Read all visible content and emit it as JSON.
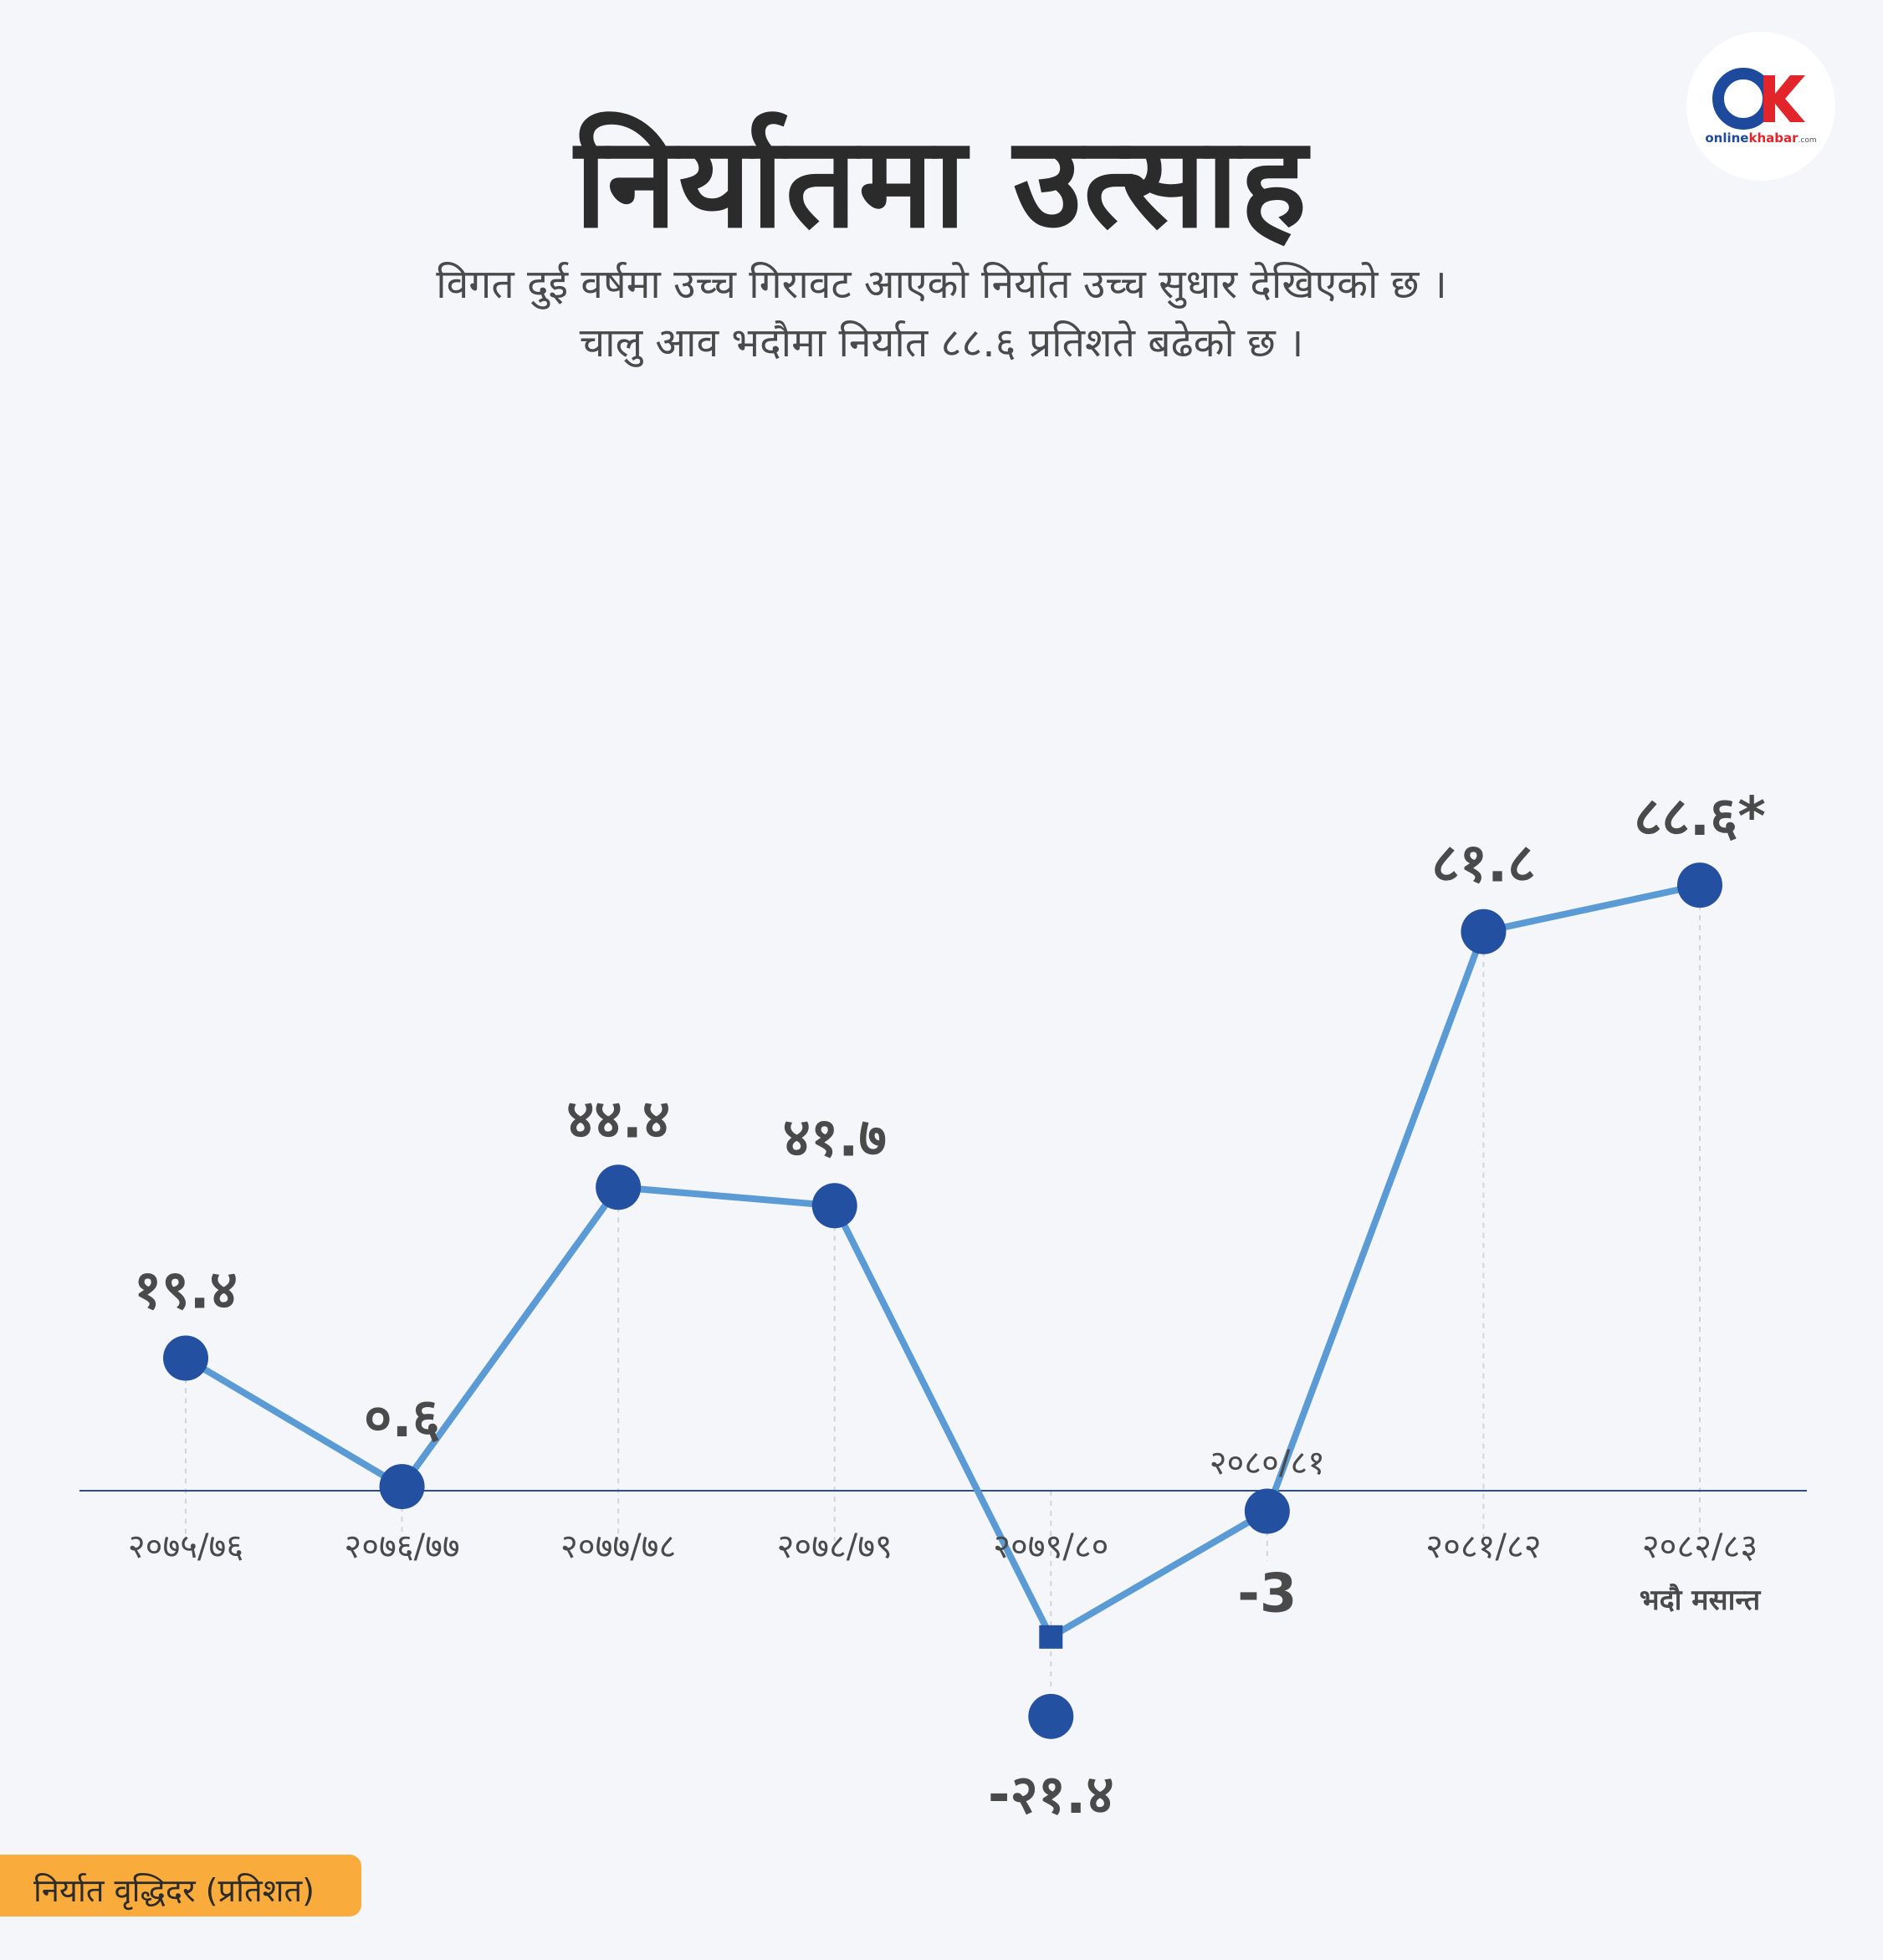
{
  "header": {
    "title": "निर्यातमा उत्साह",
    "subtitle_lines": [
      "विगत दुई वर्षमा उच्च गिरावट आएको निर्यात उच्च सुधार देखिएको छ ।",
      "चालु आव भदौमा निर्यात ८८.६ प्रतिशते बढेको छ ।"
    ]
  },
  "logo": {
    "icon": "onlinekhabar-ok-logo",
    "text_online": "online",
    "text_khabar": "khabar",
    "text_domain": ".com"
  },
  "legend": {
    "label": "निर्यात वृद्धिदर  (प्रतिशत)"
  },
  "colors": {
    "line": "#5b9bd5",
    "marker": "#2350a0",
    "axis": "#2a4f9a",
    "grid": "#d4d4d8",
    "legend_bg": "#f9ac3b"
  },
  "chart_data": {
    "type": "line",
    "categories": [
      "२०७५/७६",
      "२०७६/७७",
      "२०७७/७८",
      "२०७८/७९",
      "२०७९/८०",
      "२०८०/८१",
      "२०८१/८२",
      "२०८२/८३"
    ],
    "category_sublabels": [
      "",
      "",
      "",
      "",
      "",
      "",
      "",
      "भदौ मसान्त"
    ],
    "values": [
      19.4,
      0.6,
      44.4,
      41.7,
      -21.4,
      -3,
      81.8,
      88.6
    ],
    "value_labels": [
      "१९.४",
      "०.६",
      "४४.४",
      "४१.७",
      "-२१.४",
      "-3",
      "८१.८",
      "८८.६*"
    ],
    "ylabel": "निर्यात वृद्धिदर  (प्रतिशत)",
    "grid": "vertical dashed guides",
    "legend_position": "bottom-left"
  }
}
